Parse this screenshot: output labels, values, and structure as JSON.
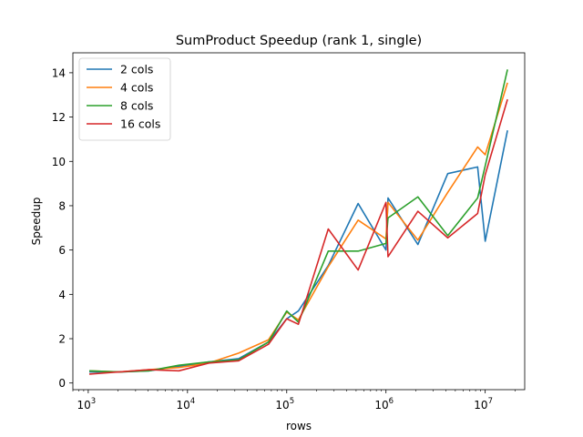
{
  "chart_data": {
    "type": "line",
    "title": "SumProduct Speedup (rank 1, single)",
    "xlabel": "rows",
    "ylabel": "Speedup",
    "xscale": "log",
    "xlim": [
      700,
      25000000
    ],
    "ylim": [
      -0.3,
      14.9
    ],
    "yticks": [
      0,
      2,
      4,
      6,
      8,
      10,
      12,
      14
    ],
    "xticks": [
      {
        "value": 1000,
        "base": "10",
        "exp": "3"
      },
      {
        "value": 10000,
        "base": "10",
        "exp": "4"
      },
      {
        "value": 100000,
        "base": "10",
        "exp": "5"
      },
      {
        "value": 1000000,
        "base": "10",
        "exp": "6"
      },
      {
        "value": 10000000,
        "base": "10",
        "exp": "7"
      }
    ],
    "grid": false,
    "legend_position": "top-left",
    "x": [
      1024,
      2048,
      4096,
      8192,
      16384,
      32768,
      65536,
      100000,
      131072,
      262144,
      524288,
      1000000,
      1048576,
      2097152,
      4194304,
      8388608,
      10000000,
      16777216
    ],
    "series": [
      {
        "name": "2 cols",
        "color": "#1f77b4",
        "values": [
          0.5,
          0.5,
          0.55,
          0.75,
          0.95,
          1.1,
          1.85,
          2.9,
          3.25,
          5.3,
          8.1,
          6.0,
          8.35,
          6.25,
          9.45,
          9.75,
          6.4,
          11.4
        ]
      },
      {
        "name": "4 cols",
        "color": "#ff7f0e",
        "values": [
          0.55,
          0.5,
          0.6,
          0.7,
          0.9,
          1.35,
          1.95,
          3.2,
          2.85,
          5.25,
          7.35,
          6.5,
          8.15,
          6.45,
          8.6,
          10.65,
          10.3,
          13.55
        ]
      },
      {
        "name": "8 cols",
        "color": "#2ca02c",
        "values": [
          0.55,
          0.5,
          0.55,
          0.8,
          0.95,
          1.05,
          1.85,
          3.25,
          2.75,
          5.95,
          5.95,
          6.3,
          7.45,
          8.4,
          6.65,
          8.35,
          9.8,
          14.15
        ]
      },
      {
        "name": "16 cols",
        "color": "#d62728",
        "values": [
          0.4,
          0.5,
          0.6,
          0.55,
          0.9,
          1.0,
          1.75,
          2.9,
          2.65,
          6.95,
          5.1,
          8.15,
          5.7,
          7.75,
          6.55,
          7.65,
          9.4,
          12.8
        ]
      }
    ]
  }
}
